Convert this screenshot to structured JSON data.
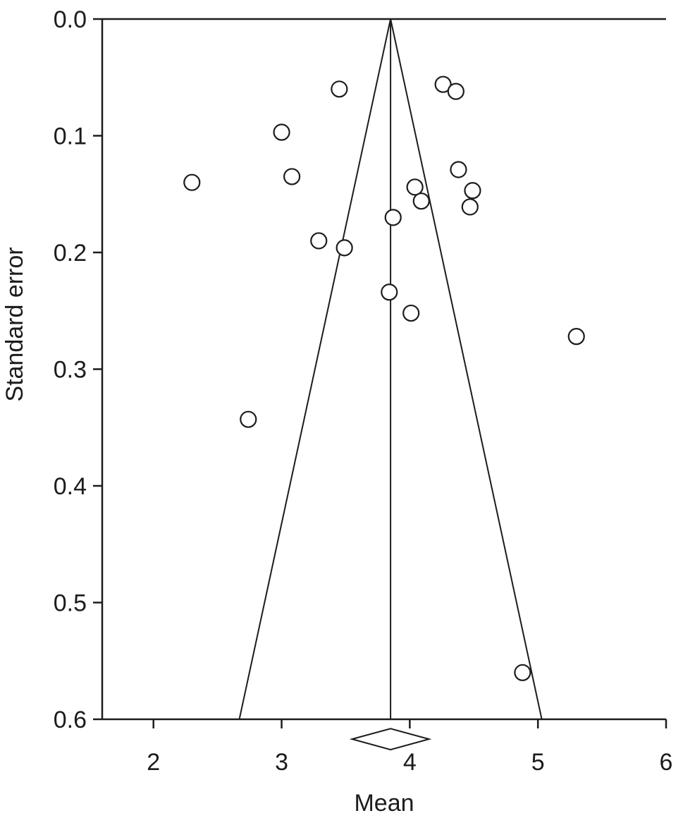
{
  "chart_data": {
    "type": "scatter",
    "title": "",
    "xlabel": "Mean",
    "ylabel": "Standard error",
    "xlim": [
      1.6,
      6.0
    ],
    "ylim": [
      0.0,
      0.6
    ],
    "y_axis_inverted": true,
    "grid": false,
    "x_ticks": {
      "values": [
        2,
        3,
        4,
        5,
        6
      ],
      "labels": [
        "2",
        "3",
        "4",
        "5",
        "6"
      ]
    },
    "y_ticks": {
      "values": [
        0.0,
        0.1,
        0.2,
        0.3,
        0.4,
        0.5,
        0.6
      ],
      "labels": [
        "0.0",
        "0.1",
        "0.2",
        "0.3",
        "0.4",
        "0.5",
        "0.6"
      ]
    },
    "pooled_mean_line_x": 3.85,
    "funnel": {
      "apex": {
        "x": 3.85,
        "se": 0.0
      },
      "left_end": {
        "x": 2.67,
        "se": 0.6
      },
      "right_end": {
        "x": 5.03,
        "se": 0.6
      }
    },
    "pooled_diamond": {
      "center_x": 3.85,
      "half_width": 0.3,
      "center_se": 0.617,
      "half_height_se": 0.009
    },
    "points": [
      {
        "mean": 3.45,
        "se": 0.06
      },
      {
        "mean": 4.26,
        "se": 0.056
      },
      {
        "mean": 4.36,
        "se": 0.062
      },
      {
        "mean": 3.0,
        "se": 0.097
      },
      {
        "mean": 3.08,
        "se": 0.135
      },
      {
        "mean": 2.3,
        "se": 0.14
      },
      {
        "mean": 4.38,
        "se": 0.129
      },
      {
        "mean": 4.04,
        "se": 0.144
      },
      {
        "mean": 4.49,
        "se": 0.147
      },
      {
        "mean": 4.09,
        "se": 0.156
      },
      {
        "mean": 4.47,
        "se": 0.161
      },
      {
        "mean": 3.87,
        "se": 0.17
      },
      {
        "mean": 3.29,
        "se": 0.19
      },
      {
        "mean": 3.49,
        "se": 0.196
      },
      {
        "mean": 3.84,
        "se": 0.234
      },
      {
        "mean": 4.01,
        "se": 0.252
      },
      {
        "mean": 5.3,
        "se": 0.272
      },
      {
        "mean": 2.74,
        "se": 0.343
      },
      {
        "mean": 4.88,
        "se": 0.56
      }
    ],
    "style": {
      "line_color": "#1c1c1c",
      "marker_fill": "#ffffff",
      "marker_stroke": "#1c1c1c",
      "marker_radius_px": 11
    }
  }
}
